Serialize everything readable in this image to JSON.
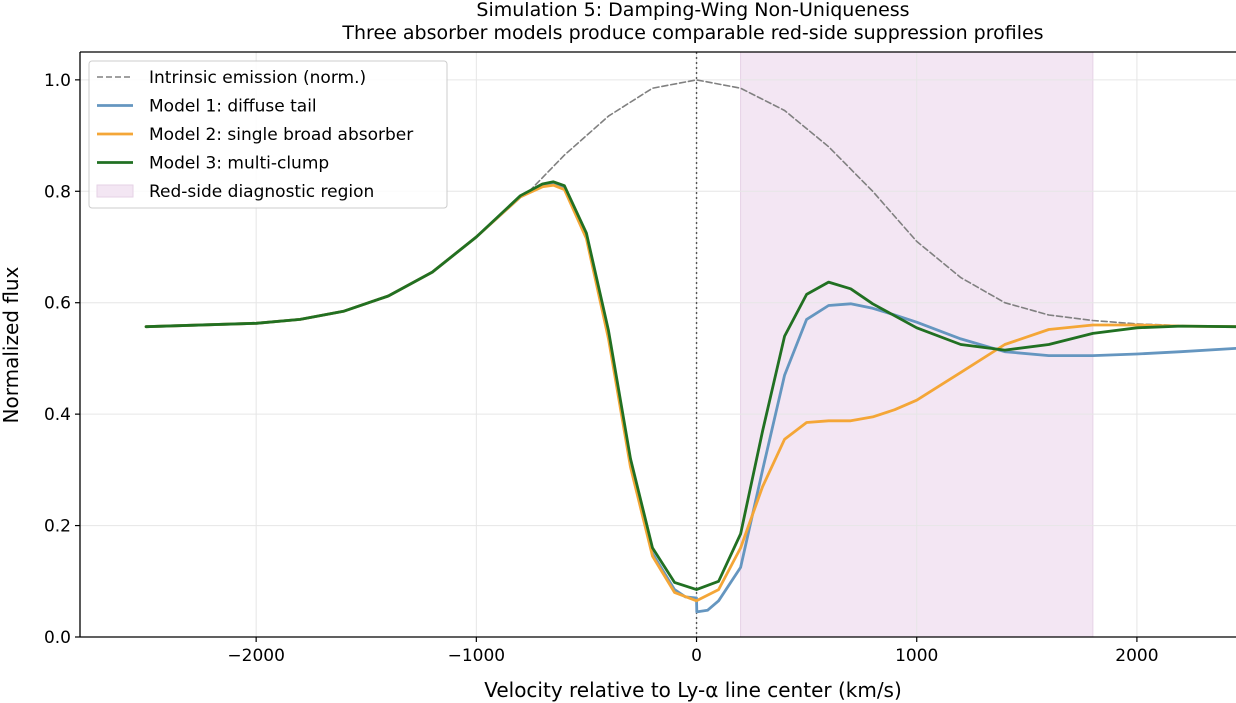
{
  "chart_data": {
    "type": "line",
    "title": "Simulation 5: Damping-Wing Non-Uniqueness",
    "subtitle": "Three absorber models produce comparable red-side suppression profiles",
    "xlabel": "Velocity relative to Ly-α line center (km/s)",
    "ylabel": "Normalized flux",
    "xlim": [
      -2800,
      2450
    ],
    "ylim": [
      0,
      1.05
    ],
    "xticks": [
      -2000,
      -1000,
      0,
      1000,
      2000
    ],
    "xtick_labels": [
      "−2000",
      "−1000",
      "0",
      "1000",
      "2000"
    ],
    "yticks": [
      0,
      0.2,
      0.4,
      0.6,
      0.8,
      1.0
    ],
    "ytick_labels": [
      "0.0",
      "0.2",
      "0.4",
      "0.6",
      "0.8",
      "1.0"
    ],
    "grid": true,
    "legend_position": "top-left",
    "vertical_line_x": 0,
    "shaded_region": {
      "x0": 200,
      "x1": 1800,
      "name": "Red-side diagnostic region",
      "color": "#f3e6f3"
    },
    "series": [
      {
        "name": "Intrinsic emission (norm.)",
        "style": "dashed",
        "color": "#808080",
        "x": [
          -760,
          -600,
          -400,
          -200,
          0,
          200,
          400,
          600,
          800,
          1000,
          1200,
          1400,
          1600,
          1800,
          2000,
          2200,
          2400
        ],
        "y": [
          0.8,
          0.865,
          0.935,
          0.985,
          1.0,
          0.985,
          0.945,
          0.88,
          0.8,
          0.71,
          0.645,
          0.6,
          0.578,
          0.568,
          0.562,
          0.559,
          0.557
        ]
      },
      {
        "name": "Model 1: diffuse tail",
        "style": "solid",
        "color": "#6596c0",
        "x": [
          -2500,
          -2000,
          -1800,
          -1600,
          -1400,
          -1200,
          -1000,
          -800,
          -700,
          -650,
          -600,
          -500,
          -400,
          -300,
          -200,
          -100,
          -50,
          0,
          1,
          50,
          100,
          200,
          300,
          400,
          500,
          600,
          700,
          800,
          900,
          1000,
          1200,
          1400,
          1600,
          1800,
          2000,
          2200,
          2450
        ],
        "y": [
          0.557,
          0.563,
          0.57,
          0.585,
          0.612,
          0.655,
          0.718,
          0.79,
          0.81,
          0.813,
          0.805,
          0.72,
          0.54,
          0.31,
          0.15,
          0.085,
          0.072,
          0.07,
          0.045,
          0.048,
          0.065,
          0.125,
          0.3,
          0.47,
          0.57,
          0.595,
          0.598,
          0.59,
          0.578,
          0.565,
          0.535,
          0.512,
          0.505,
          0.505,
          0.508,
          0.512,
          0.518
        ]
      },
      {
        "name": "Model 2: single broad absorber",
        "style": "solid",
        "color": "#f4a637",
        "x": [
          -2500,
          -2000,
          -1800,
          -1600,
          -1400,
          -1200,
          -1000,
          -800,
          -700,
          -650,
          -600,
          -500,
          -400,
          -300,
          -200,
          -100,
          0,
          100,
          200,
          300,
          400,
          500,
          600,
          700,
          800,
          900,
          1000,
          1200,
          1400,
          1600,
          1800,
          2000,
          2200,
          2450
        ],
        "y": [
          0.557,
          0.563,
          0.57,
          0.585,
          0.612,
          0.655,
          0.718,
          0.79,
          0.808,
          0.811,
          0.803,
          0.715,
          0.535,
          0.305,
          0.145,
          0.08,
          0.065,
          0.085,
          0.16,
          0.27,
          0.355,
          0.385,
          0.388,
          0.388,
          0.395,
          0.408,
          0.425,
          0.475,
          0.525,
          0.552,
          0.56,
          0.56,
          0.558,
          0.557
        ]
      },
      {
        "name": "Model 3: multi-clump",
        "style": "solid",
        "color": "#217022",
        "x": [
          -2500,
          -2000,
          -1800,
          -1600,
          -1400,
          -1200,
          -1000,
          -800,
          -700,
          -650,
          -600,
          -500,
          -400,
          -300,
          -200,
          -100,
          0,
          100,
          200,
          300,
          400,
          500,
          600,
          700,
          800,
          1000,
          1200,
          1400,
          1600,
          1800,
          2000,
          2200,
          2450
        ],
        "y": [
          0.557,
          0.563,
          0.57,
          0.585,
          0.612,
          0.655,
          0.718,
          0.792,
          0.813,
          0.817,
          0.81,
          0.725,
          0.55,
          0.32,
          0.16,
          0.098,
          0.085,
          0.1,
          0.185,
          0.37,
          0.54,
          0.615,
          0.637,
          0.625,
          0.598,
          0.555,
          0.525,
          0.515,
          0.525,
          0.545,
          0.555,
          0.558,
          0.557
        ]
      }
    ]
  }
}
